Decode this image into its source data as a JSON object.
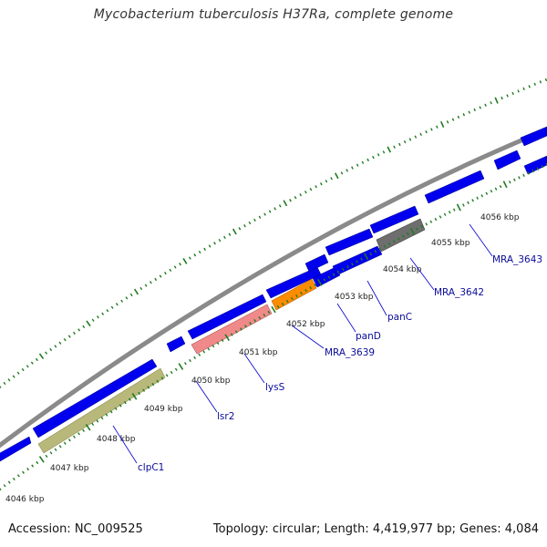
{
  "title": "Mycobacterium tuberculosis H37Ra, complete genome",
  "footer": {
    "accession": "Accession: NC_009525",
    "summary": "Topology: circular; Length: 4,419,977 bp; Genes: 4,084"
  },
  "colors": {
    "backbone": "#8a8a8a",
    "gene_default": "#0000ee",
    "tick": "#1f7a1f",
    "label_line": "#0000cc",
    "clpC1": "#b8b87a",
    "lysS": "#f08a8a",
    "MRA_3639": "#ff8c00",
    "MRA_3642": "#6e6e6e"
  },
  "ruler": {
    "unit": "kbp",
    "labels": [
      "4046 kbp",
      "4047 kbp",
      "4048 kbp",
      "4049 kbp",
      "4050 kbp",
      "4051 kbp",
      "4052 kbp",
      "4053 kbp",
      "4054 kbp",
      "4055 kbp",
      "4056 kbp"
    ]
  },
  "gene_labels": [
    "clpC1",
    "lsr2",
    "lysS",
    "MRA_3639",
    "panD",
    "panC",
    "MRA_3642",
    "MRA_3643"
  ]
}
